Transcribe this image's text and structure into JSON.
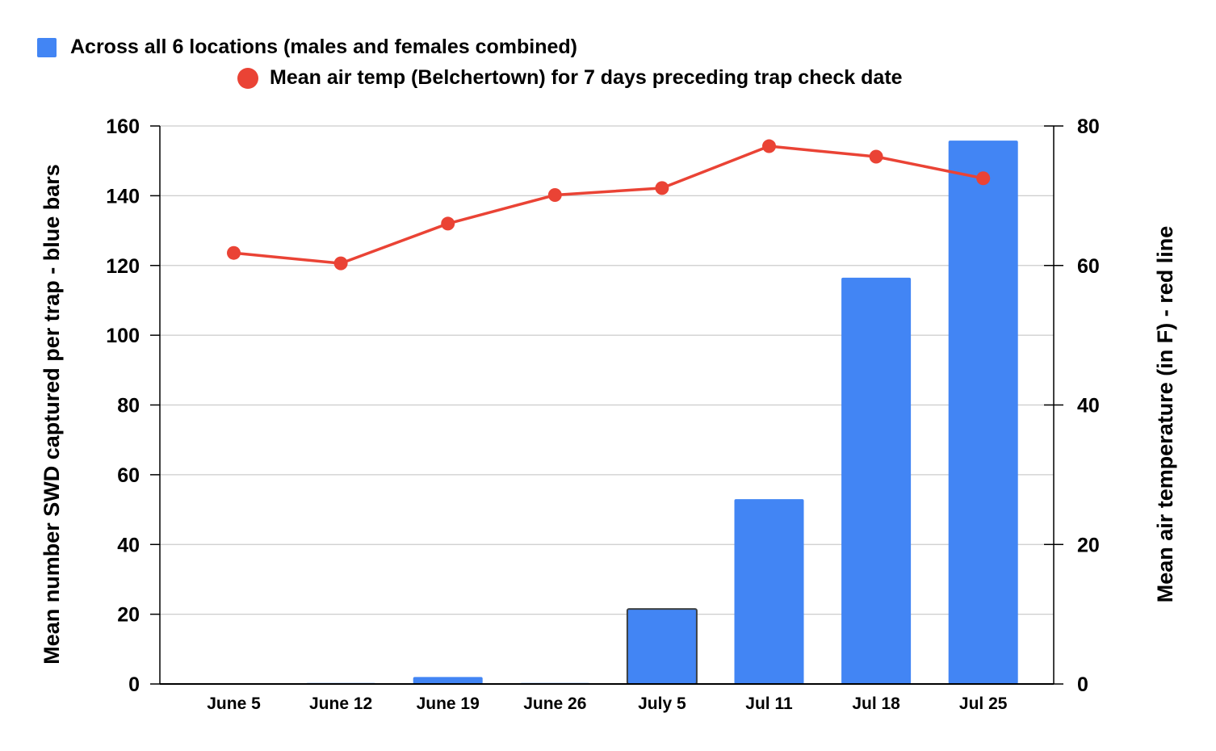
{
  "chart_data": {
    "type": "bar",
    "categories": [
      "June 5",
      "June 12",
      "June 19",
      "June 26",
      "July 5",
      "Jul 11",
      "Jul 18",
      "Jul 25"
    ],
    "series": [
      {
        "name": "Across all 6 locations (males and females combined)",
        "type": "bar",
        "axis": "left",
        "color": "#4285f4",
        "values": [
          0,
          0.3,
          2,
          0.3,
          21.5,
          53,
          116.5,
          155.8
        ]
      },
      {
        "name": "Mean air temp (Belchertown) for 7 days preceding trap check date",
        "type": "line",
        "axis": "right",
        "color": "#ea4335",
        "values": [
          61.8,
          60.3,
          66,
          70.1,
          71.1,
          77.1,
          75.6,
          72.5
        ]
      }
    ],
    "y_left": {
      "label": "Mean number SWD captured per trap - blue bars",
      "range": [
        0,
        160
      ],
      "ticks": [
        "0",
        "20",
        "40",
        "60",
        "80",
        "100",
        "120",
        "140",
        "160"
      ]
    },
    "y_right": {
      "label": "Mean air temperature (in F) - red line",
      "range": [
        0,
        80
      ],
      "ticks": [
        "0",
        "20",
        "40",
        "60",
        "80"
      ]
    },
    "grid": true,
    "legend_position": "top-left"
  }
}
